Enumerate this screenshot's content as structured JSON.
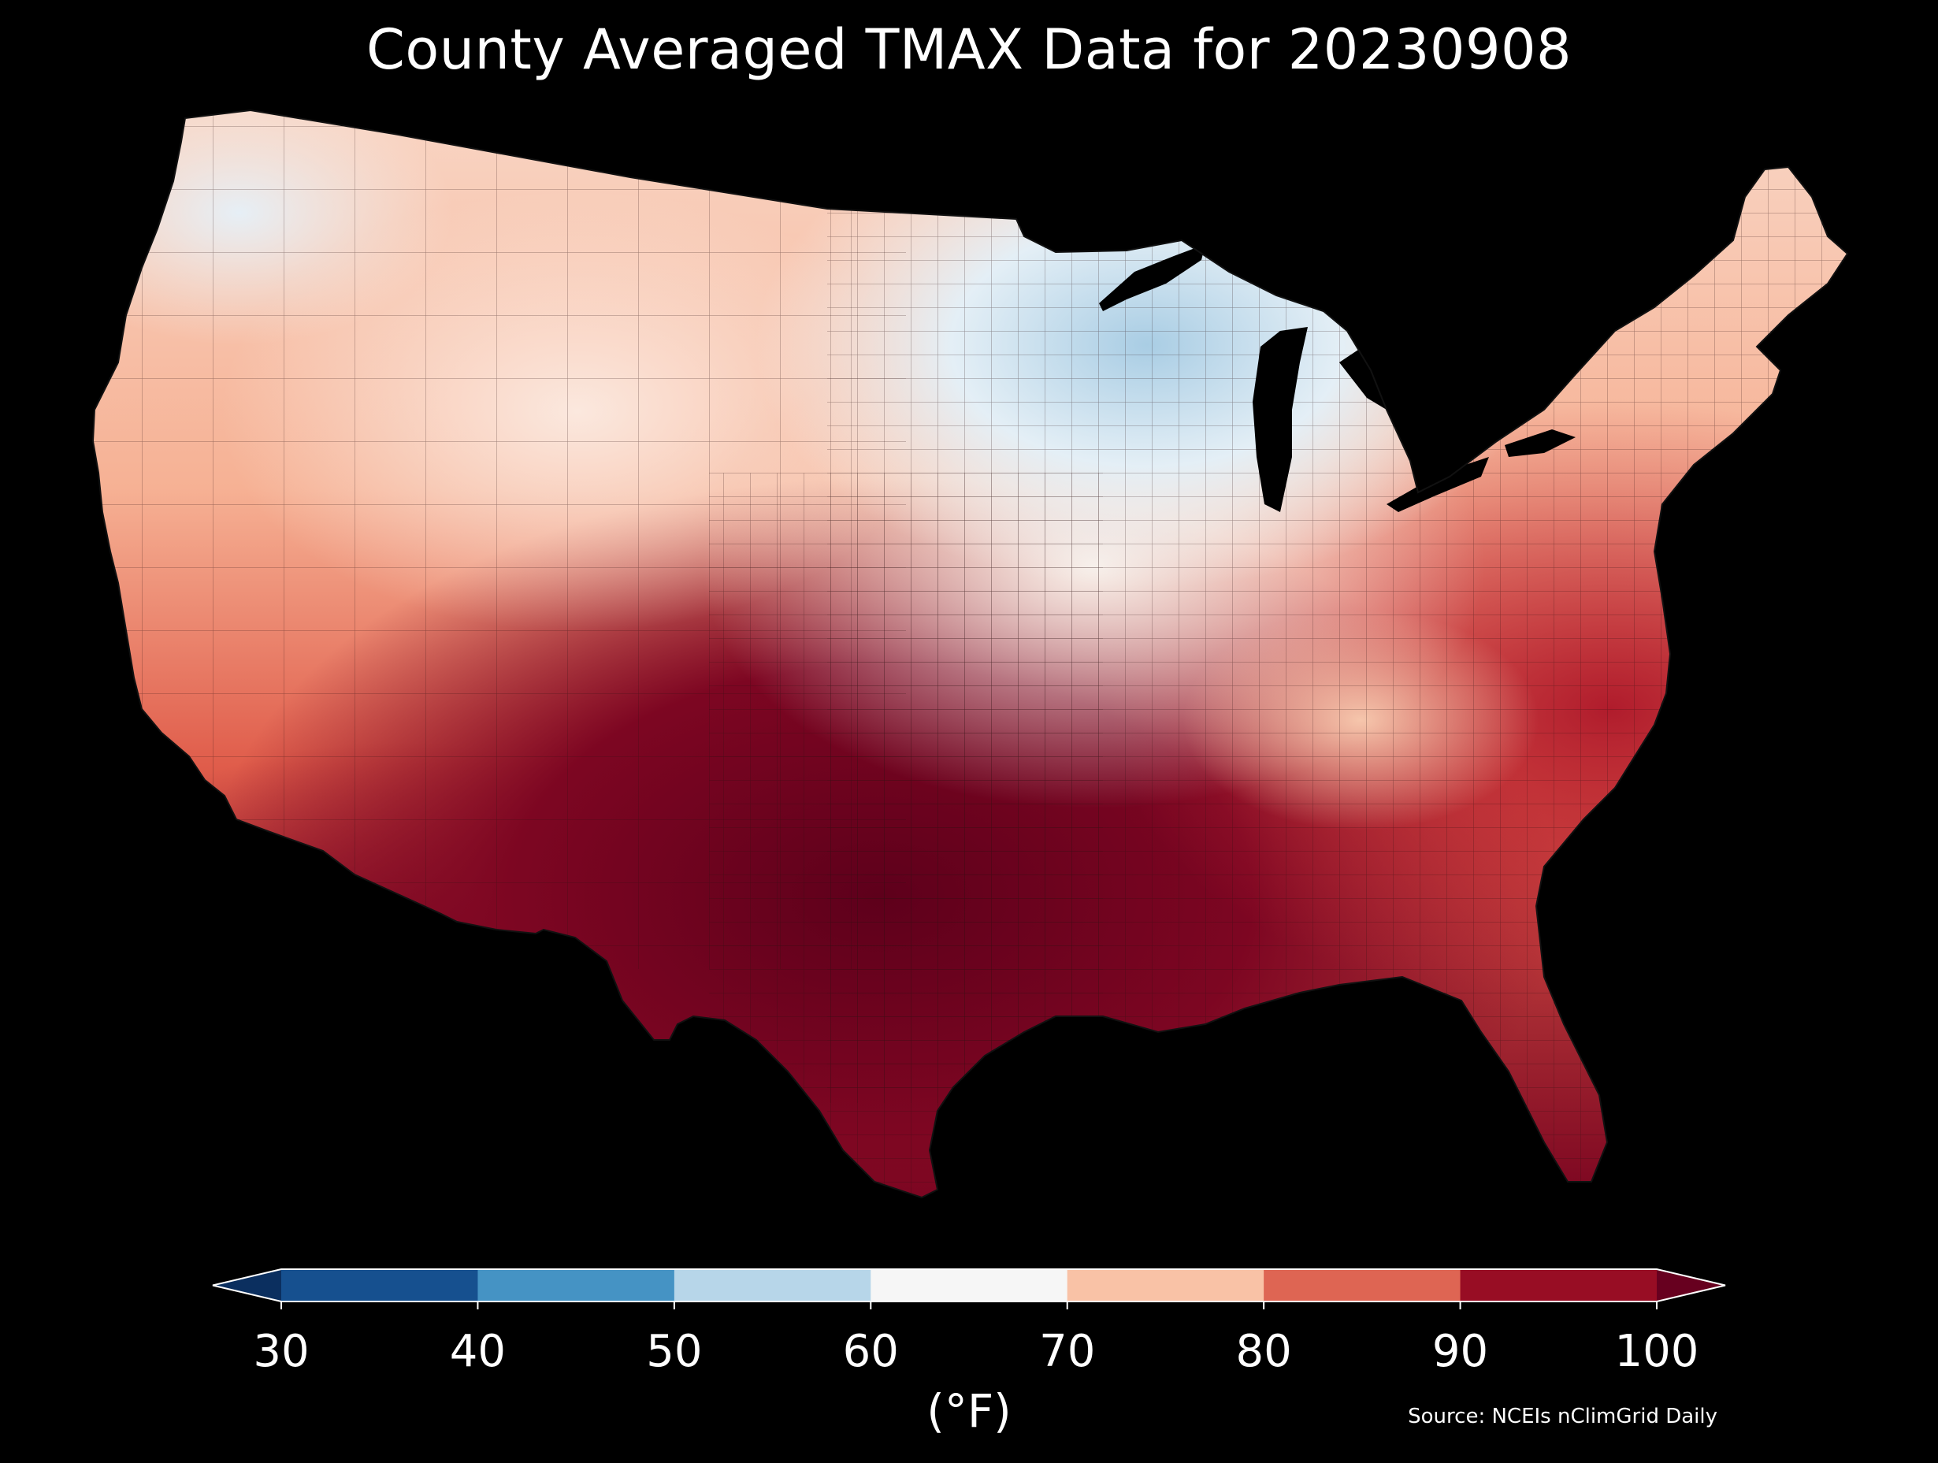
{
  "title": "County Averaged TMAX Data for 20230908",
  "colorbar": {
    "bins": [
      {
        "from": 30,
        "to": 40,
        "color": "#16508f"
      },
      {
        "from": 40,
        "to": 50,
        "color": "#4593c4"
      },
      {
        "from": 50,
        "to": 60,
        "color": "#b7d6e9"
      },
      {
        "from": 60,
        "to": 70,
        "color": "#f6f6f6"
      },
      {
        "from": 70,
        "to": 80,
        "color": "#f9c2a6"
      },
      {
        "from": 80,
        "to": 90,
        "color": "#de6553"
      },
      {
        "from": 90,
        "to": 100,
        "color": "#980d24"
      }
    ],
    "under_color": "#0b2f5f",
    "over_color": "#67001f",
    "ticks": [
      "30",
      "40",
      "50",
      "60",
      "70",
      "80",
      "90",
      "100"
    ],
    "unit_label": "(°F)"
  },
  "source": "Source: NCEIs nClimGrid Daily",
  "map": {
    "region": "Contiguous United States",
    "background_color": "#000000",
    "border_color": "#222222"
  }
}
